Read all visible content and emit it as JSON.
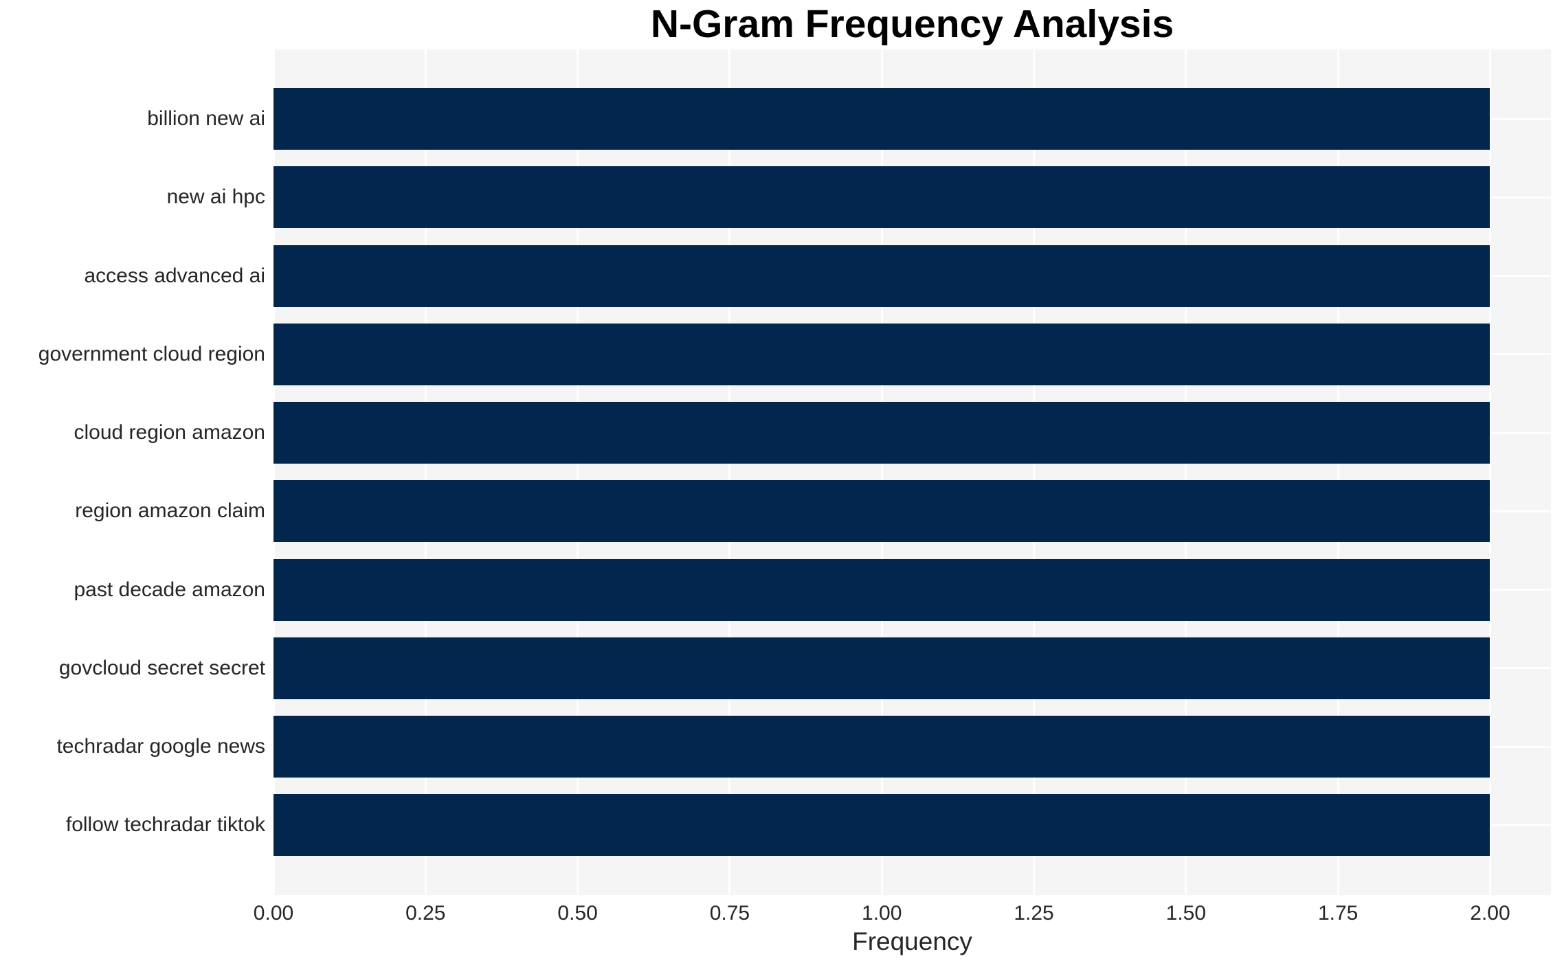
{
  "chart_data": {
    "type": "bar",
    "orientation": "horizontal",
    "title": "N-Gram Frequency Analysis",
    "xlabel": "Frequency",
    "ylabel": "",
    "categories": [
      "billion new ai",
      "new ai hpc",
      "access advanced ai",
      "government cloud region",
      "cloud region amazon",
      "region amazon claim",
      "past decade amazon",
      "govcloud secret secret",
      "techradar google news",
      "follow techradar tiktok"
    ],
    "values": [
      2,
      2,
      2,
      2,
      2,
      2,
      2,
      2,
      2,
      2
    ],
    "x_tick_labels": [
      "0.00",
      "0.25",
      "0.50",
      "0.75",
      "1.00",
      "1.25",
      "1.50",
      "1.75",
      "2.00"
    ],
    "xlim": [
      0,
      2.1
    ],
    "grid": true,
    "legend_position": "none",
    "colors": {
      "bar": "#03264f",
      "axes_background": "#f5f5f6",
      "gridline": "#ffffff",
      "tick_label": "#262626",
      "title": "#000000"
    }
  }
}
